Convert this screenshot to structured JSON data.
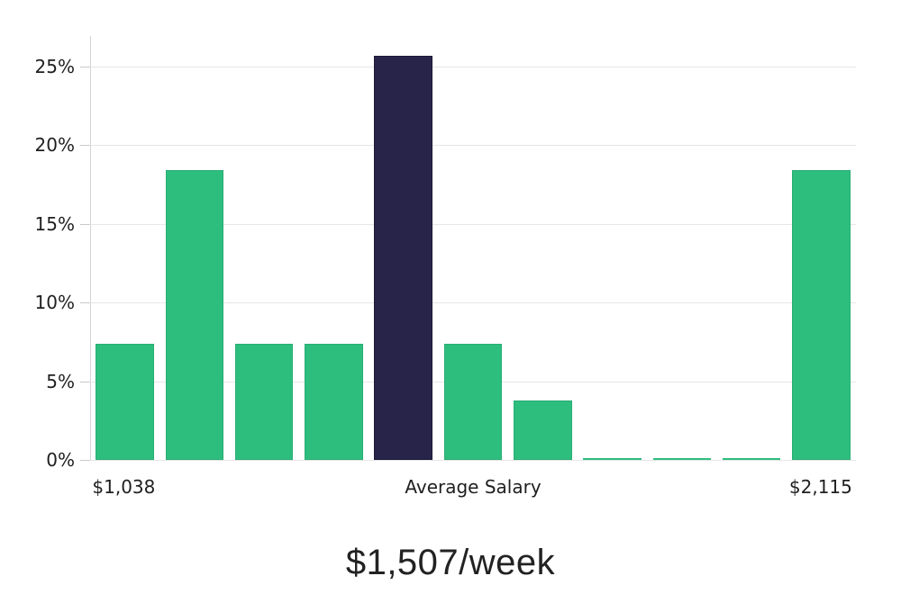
{
  "caption": {
    "text": "$1,507/week"
  },
  "chart_data": {
    "type": "bar",
    "title": "",
    "xlabel": "",
    "ylabel": "",
    "grid": true,
    "values": [
      7.4,
      18.4,
      7.4,
      7.4,
      25.7,
      7.4,
      3.8,
      0.1,
      0.1,
      0.1,
      18.4
    ],
    "bar_roles": [
      "normal",
      "normal",
      "normal",
      "normal",
      "highlight",
      "normal",
      "normal",
      "normal",
      "normal",
      "normal",
      "normal"
    ],
    "highlight_index": 4,
    "y_axis": {
      "tick_labels": [
        "0%",
        "5%",
        "10%",
        "15%",
        "20%",
        "25%"
      ],
      "tick_values": [
        0,
        5,
        10,
        15,
        20,
        25
      ],
      "max": 27
    },
    "x_axis": {
      "labels": [
        {
          "text": "$1,038",
          "position_pct": 4.4
        },
        {
          "text": "Average Salary",
          "position_pct": 50
        },
        {
          "text": "$2,115",
          "position_pct": 95.4
        }
      ]
    },
    "colors": {
      "bar_normal": "#2dbe7e",
      "bar_normal_edge": "#29ad74",
      "bar_highlight": "#282349",
      "bar_highlight_edge": "#1d1937",
      "gridline": "#e6e6e6",
      "axis": "#c9c9c9",
      "tick_text": "#1f1f1f",
      "caption_text": "#222222"
    }
  }
}
